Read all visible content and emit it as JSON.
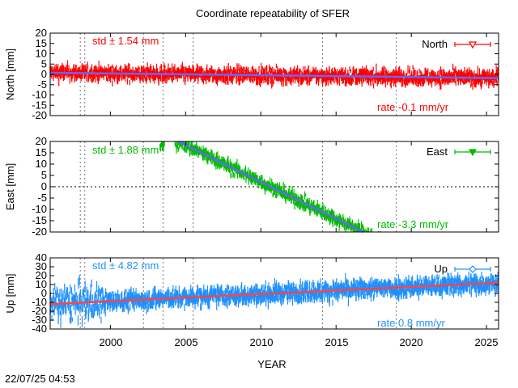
{
  "title": "Coordinate repeatability of SFER",
  "xlabel": "YEAR",
  "timestamp": "22/07/25 04:53",
  "chart_data": [
    {
      "type": "scatter",
      "name": "North",
      "ylabel": "North [mm]",
      "legend": "North",
      "legend_position": "top-right",
      "xlim": [
        1996.0,
        2025.8
      ],
      "ylim": [
        -20,
        20
      ],
      "yticks": [
        -20,
        -15,
        -10,
        -5,
        0,
        5,
        10,
        15,
        20
      ],
      "std_label": "std ± 1.54 mm",
      "rate_label": "rate -0.1 mm/yr",
      "color": "#ff0000",
      "trend_color": "#6666ff",
      "zero_line": false,
      "trend": [
        [
          1996.0,
          0.8
        ],
        [
          2025.8,
          -1.8
        ]
      ],
      "noise_mm": 3.2,
      "x_ranges": [
        [
          1996.0,
          2025.8
        ]
      ],
      "event_lines": [
        1998.0,
        1998.3,
        2002.2,
        2003.5,
        2005.5,
        2014.1,
        2019.0
      ]
    },
    {
      "type": "scatter",
      "name": "East",
      "ylabel": "East [mm]",
      "legend": "East",
      "legend_position": "top-right",
      "xlim": [
        1996.0,
        2025.8
      ],
      "ylim": [
        -20,
        20
      ],
      "yticks": [
        -20,
        -15,
        -10,
        -5,
        0,
        5,
        10,
        15,
        20
      ],
      "std_label": "std ± 1.88 mm",
      "rate_label": "rate -3.3 mm/yr",
      "color": "#00bb00",
      "trend_color": "#6666ff",
      "zero_line": true,
      "trend": [
        [
          2004.5,
          20.0
        ],
        [
          2016.8,
          -20.0
        ]
      ],
      "noise_mm": 2.6,
      "x_ranges": [
        [
          2003.3,
          2003.6
        ],
        [
          2004.3,
          2019.0
        ]
      ],
      "event_lines": [
        1998.0,
        1998.3,
        2002.2,
        2003.5,
        2005.5,
        2014.1,
        2019.0
      ]
    },
    {
      "type": "scatter",
      "name": "Up",
      "ylabel": "Up [mm]",
      "legend": "Up",
      "legend_position": "top-right",
      "xlim": [
        1996.0,
        2025.8
      ],
      "ylim": [
        -40,
        40
      ],
      "yticks": [
        -40,
        -30,
        -20,
        -10,
        0,
        10,
        20,
        30,
        40
      ],
      "std_label": "std ± 4.82 mm",
      "rate_label": "rate 0.8 mm/yr",
      "color": "#1e90ff",
      "trend_color": "#ff4444",
      "zero_line": false,
      "trend": [
        [
          1996.0,
          -12.0
        ],
        [
          2025.8,
          12.0
        ]
      ],
      "noise_mm": 9.0,
      "x_ranges": [
        [
          1996.0,
          2025.8
        ]
      ],
      "event_lines": [
        1998.0,
        1998.3,
        2002.2,
        2003.5,
        2005.5,
        2014.1,
        2019.0
      ]
    }
  ],
  "xticks": [
    "2000",
    "2005",
    "2010",
    "2015",
    "2020",
    "2025"
  ],
  "xtick_values": [
    2000,
    2005,
    2010,
    2015,
    2020,
    2025
  ]
}
